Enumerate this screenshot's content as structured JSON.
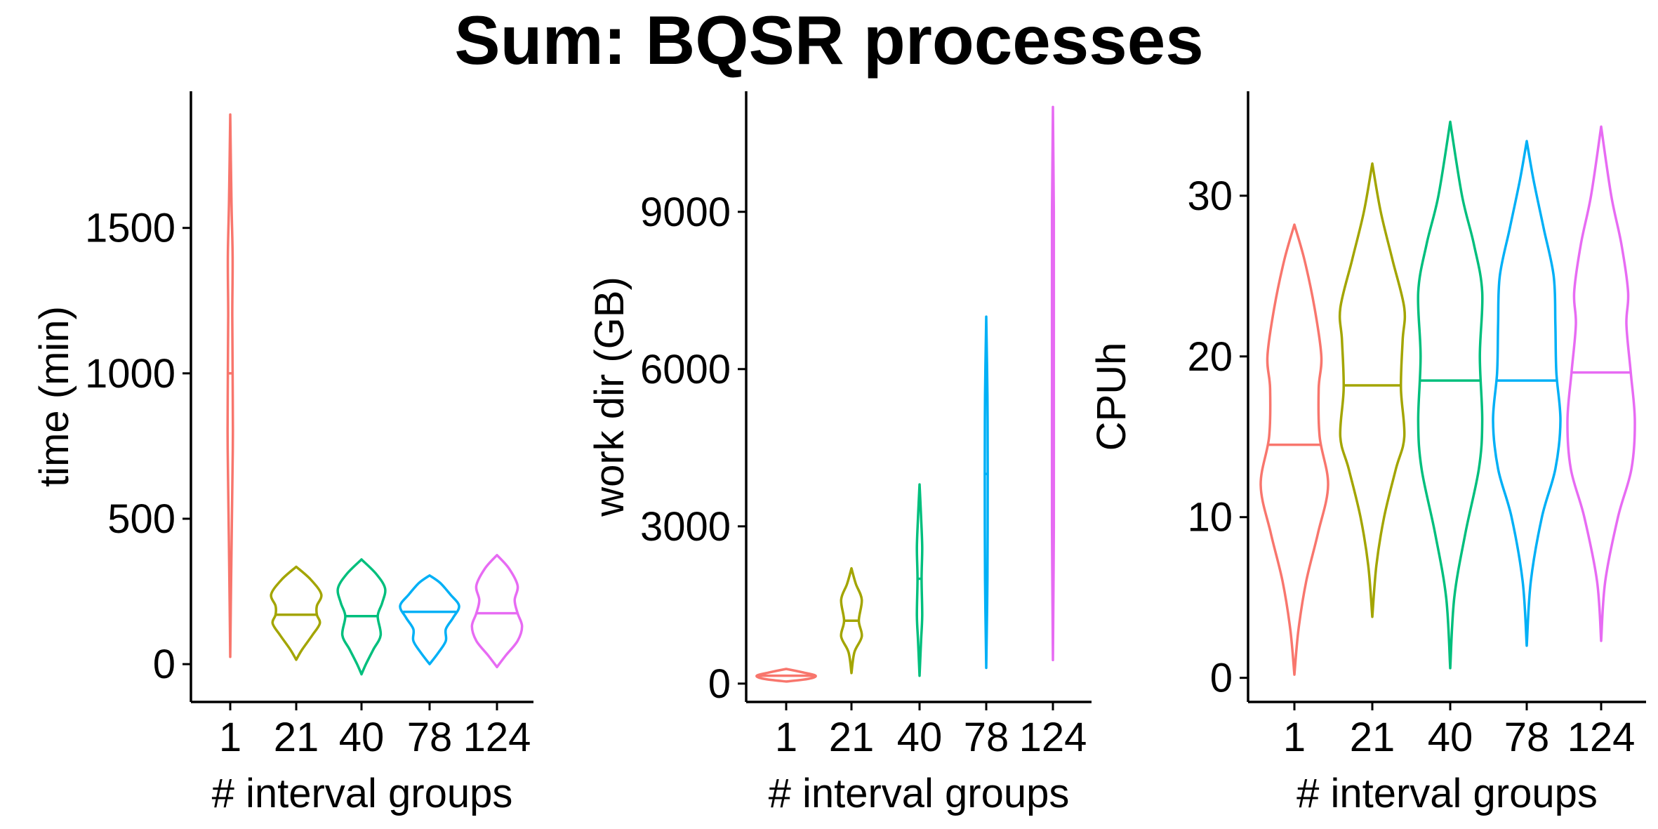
{
  "title": "Sum: BQSR processes",
  "colors": [
    "#F8766D",
    "#A3A500",
    "#00BF7D",
    "#00B0F6",
    "#E76BF3"
  ],
  "chart_data": [
    {
      "type": "violin",
      "categories": [
        "1",
        "21",
        "40",
        "78",
        "124"
      ],
      "xlabel": "# interval groups",
      "ylabel": "time (min)",
      "ylim": [
        -130,
        1970
      ],
      "yticks": [
        "0",
        "500",
        "1000",
        "1500"
      ],
      "series": [
        {
          "category": "1",
          "min": 25,
          "max": 1890,
          "median": 1000,
          "density_y": [
            25,
            300,
            600,
            800,
            1000,
            1200,
            1400,
            1600,
            1890
          ],
          "density_w": [
            0.0,
            0.03,
            0.07,
            0.09,
            0.08,
            0.07,
            0.08,
            0.04,
            0.0
          ]
        },
        {
          "category": "21",
          "min": 15,
          "max": 335,
          "median": 170,
          "density_y": [
            15,
            50,
            100,
            140,
            170,
            200,
            240,
            290,
            335
          ],
          "density_w": [
            0.0,
            0.2,
            0.55,
            0.8,
            0.7,
            0.7,
            0.85,
            0.5,
            0.0
          ]
        },
        {
          "category": "40",
          "min": -35,
          "max": 360,
          "median": 165,
          "density_y": [
            -35,
            0,
            50,
            100,
            165,
            210,
            260,
            310,
            360
          ],
          "density_w": [
            0.0,
            0.15,
            0.4,
            0.65,
            0.55,
            0.7,
            0.8,
            0.5,
            0.0
          ]
        },
        {
          "category": "78",
          "min": 0,
          "max": 305,
          "median": 180,
          "density_y": [
            0,
            40,
            80,
            120,
            160,
            200,
            240,
            280,
            305
          ],
          "density_w": [
            0.0,
            0.3,
            0.55,
            0.55,
            0.8,
            1.0,
            0.7,
            0.35,
            0.0
          ]
        },
        {
          "category": "124",
          "min": -10,
          "max": 375,
          "median": 175,
          "density_y": [
            -10,
            30,
            80,
            130,
            175,
            220,
            270,
            330,
            375
          ],
          "density_w": [
            0.0,
            0.3,
            0.7,
            0.85,
            0.7,
            0.6,
            0.7,
            0.4,
            0.0
          ]
        }
      ]
    },
    {
      "type": "violin",
      "categories": [
        "1",
        "21",
        "40",
        "78",
        "124"
      ],
      "xlabel": "# interval groups",
      "ylabel": "work dir (GB)",
      "ylim": [
        -350,
        11300
      ],
      "yticks": [
        "0",
        "3000",
        "6000",
        "9000"
      ],
      "series": [
        {
          "category": "1",
          "min": 40,
          "max": 280,
          "median": 150,
          "density_y": [
            40,
            90,
            150,
            210,
            280
          ],
          "density_w": [
            0.0,
            0.75,
            1.0,
            0.6,
            0.0
          ]
        },
        {
          "category": "21",
          "min": 200,
          "max": 2200,
          "median": 1200,
          "density_y": [
            200,
            600,
            900,
            1200,
            1600,
            1900,
            2200
          ],
          "density_w": [
            0.0,
            0.1,
            0.35,
            0.25,
            0.35,
            0.15,
            0.0
          ]
        },
        {
          "category": "40",
          "min": 150,
          "max": 3800,
          "median": 2000,
          "density_y": [
            150,
            800,
            1300,
            2000,
            2600,
            3200,
            3800
          ],
          "density_w": [
            0.0,
            0.05,
            0.09,
            0.07,
            0.09,
            0.05,
            0.0
          ]
        },
        {
          "category": "78",
          "min": 300,
          "max": 7000,
          "median": 4000,
          "density_y": [
            300,
            2000,
            4000,
            5500,
            7000
          ],
          "density_w": [
            0.0,
            0.04,
            0.05,
            0.04,
            0.0
          ]
        },
        {
          "category": "124",
          "min": 450,
          "max": 11000,
          "median": 5500,
          "density_y": [
            450,
            3000,
            6000,
            9000,
            11000
          ],
          "density_w": [
            0.0,
            0.03,
            0.03,
            0.03,
            0.0
          ]
        }
      ]
    },
    {
      "type": "violin",
      "categories": [
        "1",
        "21",
        "40",
        "78",
        "124"
      ],
      "xlabel": "# interval groups",
      "ylabel": "CPUh",
      "ylim": [
        -1.5,
        36.5
      ],
      "yticks": [
        "0",
        "10",
        "20",
        "30"
      ],
      "series": [
        {
          "category": "1",
          "min": 0.2,
          "max": 28.2,
          "median": 14.5,
          "density_y": [
            0.2,
            3,
            6,
            9,
            12,
            15,
            18,
            20,
            23,
            26,
            28.2
          ],
          "density_w": [
            0.0,
            0.12,
            0.35,
            0.7,
            1.0,
            0.75,
            0.72,
            0.8,
            0.6,
            0.3,
            0.0
          ]
        },
        {
          "category": "21",
          "min": 3.8,
          "max": 32,
          "median": 18.2,
          "density_y": [
            3.8,
            7,
            10,
            13,
            15,
            18,
            21,
            23,
            26,
            29,
            32
          ],
          "density_w": [
            0.0,
            0.12,
            0.35,
            0.7,
            0.95,
            0.85,
            0.9,
            0.95,
            0.6,
            0.25,
            0.0
          ]
        },
        {
          "category": "40",
          "min": 0.6,
          "max": 34.6,
          "median": 18.5,
          "density_y": [
            0.6,
            5,
            9,
            13,
            16,
            20,
            24,
            27,
            30,
            34.6
          ],
          "density_w": [
            0.0,
            0.12,
            0.45,
            0.85,
            0.95,
            0.88,
            0.95,
            0.7,
            0.35,
            0.0
          ]
        },
        {
          "category": "78",
          "min": 2,
          "max": 33.4,
          "median": 18.5,
          "density_y": [
            2,
            6,
            10,
            13,
            16,
            19,
            22,
            25,
            28,
            31,
            33.4
          ],
          "density_w": [
            0.0,
            0.12,
            0.45,
            0.85,
            1.0,
            0.88,
            0.85,
            0.8,
            0.5,
            0.2,
            0.0
          ]
        },
        {
          "category": "124",
          "min": 2.3,
          "max": 34.3,
          "median": 19,
          "density_y": [
            2.3,
            6,
            10,
            13,
            16,
            19,
            22,
            24,
            27,
            30,
            34.3
          ],
          "density_w": [
            0.0,
            0.12,
            0.5,
            0.9,
            1.0,
            0.88,
            0.75,
            0.8,
            0.6,
            0.3,
            0.0
          ]
        }
      ]
    }
  ]
}
